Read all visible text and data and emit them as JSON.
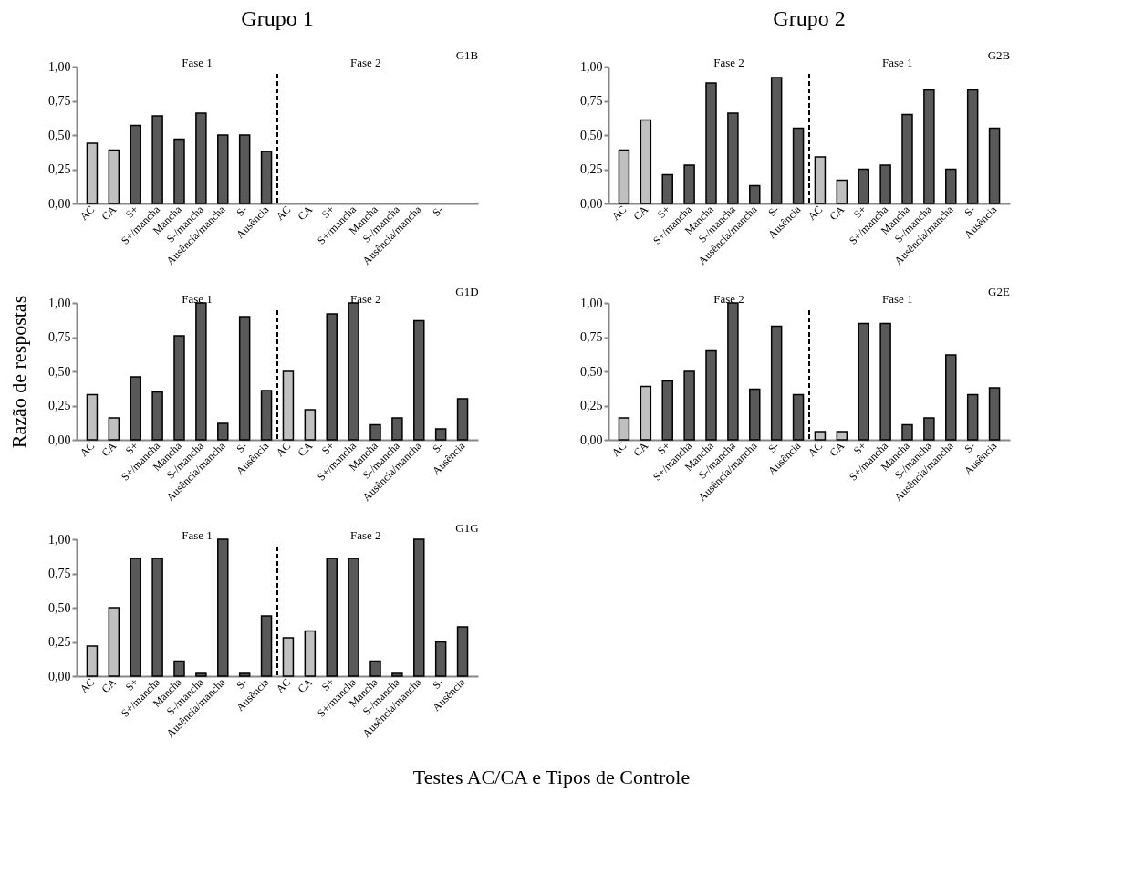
{
  "chart_data": [
    {
      "type": "bar",
      "title": "Grupo 1",
      "annotations": [
        "Fase 1",
        "Fase 2",
        "G1B"
      ],
      "categories": [
        "AC",
        "CA",
        "S+",
        "S+/mancha",
        "Mancha",
        "S-/mancha",
        "Ausência/mancha",
        "S-",
        "Ausência",
        "AC",
        "CA",
        "S+",
        "S+/mancha",
        "Mancha",
        "S-/mancha",
        "Ausência/mancha",
        "S-",
        null
      ],
      "values": [
        0.44,
        0.39,
        0.57,
        0.64,
        0.47,
        0.66,
        0.5,
        0.5,
        0.38,
        null,
        null,
        null,
        null,
        null,
        null,
        null,
        null,
        null
      ],
      "colors": [
        "#c0c0c0",
        "#c0c0c0",
        "#595959",
        "#595959",
        "#595959",
        "#595959",
        "#595959",
        "#595959",
        "#595959",
        "#595959",
        "#595959",
        "#595959",
        "#595959",
        "#595959",
        "#595959",
        "#595959",
        "#595959",
        "#595959"
      ],
      "ylim": [
        0,
        1
      ],
      "yticks": [
        {
          "value": 0,
          "label": "0,00"
        },
        {
          "value": 0.25,
          "label": "0,25"
        },
        {
          "value": 0.5,
          "label": "0,50"
        },
        {
          "value": 0.75,
          "label": "0,75"
        },
        {
          "value": 1,
          "label": "1,00"
        }
      ]
    },
    {
      "type": "bar",
      "title": "Grupo 2",
      "annotations": [
        "Fase 2",
        "Fase 1",
        "G2B"
      ],
      "categories": [
        "AC",
        "CA",
        "S+",
        "S+/mancha",
        "Mancha",
        "S-/mancha",
        "Ausência/mancha",
        "S-",
        "Ausência",
        "AC",
        "CA",
        "S+",
        "S+/mancha",
        "Mancha",
        "S-/mancha",
        "Ausência/mancha",
        "S-",
        "Ausência"
      ],
      "values": [
        0.39,
        0.61,
        0.21,
        0.28,
        0.88,
        0.66,
        0.13,
        0.92,
        0.55,
        0.34,
        0.17,
        0.25,
        0.28,
        0.65,
        0.83,
        0.25,
        0.83,
        0.55
      ],
      "colors": [
        "#c0c0c0",
        "#c0c0c0",
        "#595959",
        "#595959",
        "#595959",
        "#595959",
        "#595959",
        "#595959",
        "#595959",
        "#c0c0c0",
        "#c0c0c0",
        "#595959",
        "#595959",
        "#595959",
        "#595959",
        "#595959",
        "#595959",
        "#595959"
      ],
      "ylim": [
        0,
        1
      ],
      "yticks": [
        {
          "value": 0,
          "label": "0,00"
        },
        {
          "value": 0.25,
          "label": "0,25"
        },
        {
          "value": 0.5,
          "label": "0,50"
        },
        {
          "value": 0.75,
          "label": "0,75"
        },
        {
          "value": 1,
          "label": "1,00"
        }
      ]
    },
    {
      "type": "bar",
      "ylabel": "Razão de respostas",
      "annotations": [
        "Fase 1",
        "Fase 2",
        "G1D"
      ],
      "categories": [
        "AC",
        "CA",
        "S+",
        "S+/mancha",
        "Mancha",
        "S-/mancha",
        "Ausência/mancha",
        "S-",
        "Ausência",
        "AC",
        "CA",
        "S+",
        "S+/mancha",
        "Mancha",
        "S-/mancha",
        "Ausência/mancha",
        "S-",
        "Ausência"
      ],
      "values": [
        0.33,
        0.16,
        0.46,
        0.35,
        0.76,
        1.0,
        0.12,
        0.9,
        0.36,
        0.5,
        0.22,
        0.92,
        1.0,
        0.11,
        0.16,
        0.87,
        0.08,
        0.3
      ],
      "colors": [
        "#c0c0c0",
        "#c0c0c0",
        "#595959",
        "#595959",
        "#595959",
        "#595959",
        "#595959",
        "#595959",
        "#595959",
        "#c0c0c0",
        "#c0c0c0",
        "#595959",
        "#595959",
        "#595959",
        "#595959",
        "#595959",
        "#595959",
        "#595959"
      ],
      "ylim": [
        0,
        1
      ],
      "yticks": [
        {
          "value": 0,
          "label": "0,00"
        },
        {
          "value": 0.25,
          "label": "0,25"
        },
        {
          "value": 0.5,
          "label": "0,50"
        },
        {
          "value": 0.75,
          "label": "0,75"
        },
        {
          "value": 1,
          "label": "1,00"
        }
      ]
    },
    {
      "type": "bar",
      "annotations": [
        "Fase 2",
        "Fase 1",
        "G2E"
      ],
      "categories": [
        "AC",
        "CA",
        "S+",
        "S+/mancha",
        "Mancha",
        "S-/mancha",
        "Ausência/mancha",
        "S-",
        "Ausência",
        "AC",
        "CA",
        "S+",
        "S+/mancha",
        "Mancha",
        "S-/mancha",
        "Ausência/mancha",
        "S-",
        "Ausência"
      ],
      "values": [
        0.16,
        0.39,
        0.43,
        0.5,
        0.65,
        1.0,
        0.37,
        0.83,
        0.33,
        0.06,
        0.06,
        0.85,
        0.85,
        0.11,
        0.16,
        0.62,
        0.33,
        0.38
      ],
      "colors": [
        "#c0c0c0",
        "#c0c0c0",
        "#595959",
        "#595959",
        "#595959",
        "#595959",
        "#595959",
        "#595959",
        "#595959",
        "#c0c0c0",
        "#c0c0c0",
        "#595959",
        "#595959",
        "#595959",
        "#595959",
        "#595959",
        "#595959",
        "#595959"
      ],
      "ylim": [
        0,
        1
      ],
      "yticks": [
        {
          "value": 0,
          "label": "0,00"
        },
        {
          "value": 0.25,
          "label": "0,25"
        },
        {
          "value": 0.5,
          "label": "0,50"
        },
        {
          "value": 0.75,
          "label": "0,75"
        },
        {
          "value": 1,
          "label": "1,00"
        }
      ]
    },
    {
      "type": "bar",
      "xlabel": "Testes AC/CA e Tipos de Controle",
      "annotations": [
        "Fase 1",
        "Fase 2",
        "G1G"
      ],
      "categories": [
        "AC",
        "CA",
        "S+",
        "S+/mancha",
        "Mancha",
        "S-/mancha",
        "Ausência/mancha",
        "S-",
        "Ausência",
        "AC",
        "CA",
        "S+",
        "S+/mancha",
        "Mancha",
        "S-/mancha",
        "Ausência/mancha",
        "S-",
        "Ausência"
      ],
      "values": [
        0.22,
        0.5,
        0.86,
        0.86,
        0.11,
        0.02,
        1.0,
        0.02,
        0.44,
        0.28,
        0.33,
        0.86,
        0.86,
        0.11,
        0.02,
        1.0,
        0.25,
        0.36
      ],
      "colors": [
        "#c0c0c0",
        "#c0c0c0",
        "#595959",
        "#595959",
        "#595959",
        "#595959",
        "#595959",
        "#595959",
        "#595959",
        "#c0c0c0",
        "#c0c0c0",
        "#595959",
        "#595959",
        "#595959",
        "#595959",
        "#595959",
        "#595959",
        "#595959"
      ],
      "ylim": [
        0,
        1
      ],
      "yticks": [
        {
          "value": 0,
          "label": "0,00"
        },
        {
          "value": 0.25,
          "label": "0,25"
        },
        {
          "value": 0.5,
          "label": "0,50"
        },
        {
          "value": 0.75,
          "label": "0,75"
        },
        {
          "value": 1,
          "label": "1,00"
        }
      ]
    }
  ]
}
